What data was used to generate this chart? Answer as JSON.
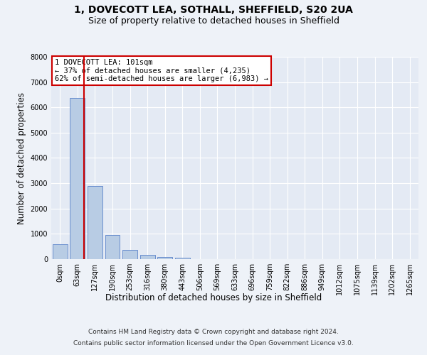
{
  "title_line1": "1, DOVECOTT LEA, SOTHALL, SHEFFIELD, S20 2UA",
  "title_line2": "Size of property relative to detached houses in Sheffield",
  "xlabel": "Distribution of detached houses by size in Sheffield",
  "ylabel": "Number of detached properties",
  "bar_labels": [
    "0sqm",
    "63sqm",
    "127sqm",
    "190sqm",
    "253sqm",
    "316sqm",
    "380sqm",
    "443sqm",
    "506sqm",
    "569sqm",
    "633sqm",
    "696sqm",
    "759sqm",
    "822sqm",
    "886sqm",
    "949sqm",
    "1012sqm",
    "1075sqm",
    "1139sqm",
    "1202sqm",
    "1265sqm"
  ],
  "bar_values": [
    580,
    6380,
    2900,
    960,
    355,
    165,
    90,
    55,
    0,
    0,
    0,
    0,
    0,
    0,
    0,
    0,
    0,
    0,
    0,
    0,
    0
  ],
  "bar_color": "#b8cce4",
  "bar_edge_color": "#4472c4",
  "vline_x": 1.37,
  "vline_color": "#cc0000",
  "ylim": [
    0,
    8000
  ],
  "yticks": [
    0,
    1000,
    2000,
    3000,
    4000,
    5000,
    6000,
    7000,
    8000
  ],
  "annotation_text": "1 DOVECOTT LEA: 101sqm\n← 37% of detached houses are smaller (4,235)\n62% of semi-detached houses are larger (6,983) →",
  "annotation_box_color": "#cc0000",
  "footer_line1": "Contains HM Land Registry data © Crown copyright and database right 2024.",
  "footer_line2": "Contains public sector information licensed under the Open Government Licence v3.0.",
  "bg_color": "#eef2f8",
  "plot_bg_color": "#e4eaf4",
  "grid_color": "#ffffff",
  "title_fontsize": 10,
  "subtitle_fontsize": 9,
  "axis_label_fontsize": 8.5,
  "tick_fontsize": 7,
  "footer_fontsize": 6.5,
  "annotation_fontsize": 7.5
}
